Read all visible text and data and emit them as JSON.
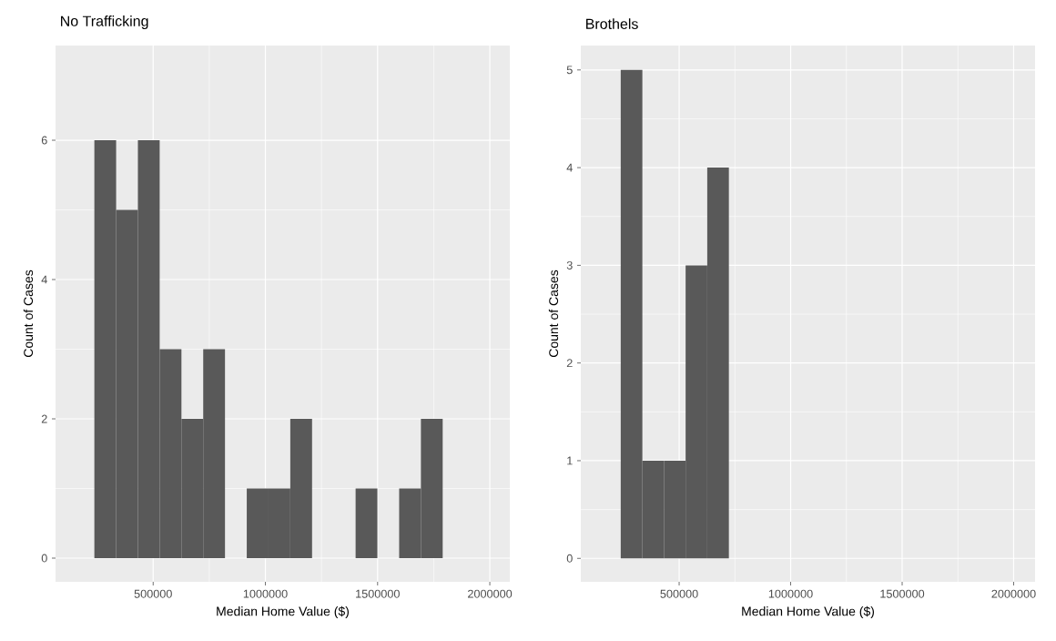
{
  "chart_data": [
    {
      "type": "histogram",
      "title": "No Trafficking",
      "xlabel": "Median Home Value ($)",
      "ylabel": "Count of Cases",
      "color": "#595959",
      "bins": [
        238000,
        335000,
        432000,
        529000,
        626000,
        723000,
        820000,
        917000,
        1014000,
        1111000,
        1208000,
        1305000,
        1402000,
        1499000,
        1596000,
        1693000,
        1790000
      ],
      "values": [
        6,
        5,
        6,
        3,
        2,
        3,
        0,
        1,
        1,
        2,
        0,
        0,
        1,
        0,
        1,
        2
      ],
      "xlim": [
        65000,
        2089000
      ],
      "ylim": [
        -0.34,
        7.36
      ],
      "xticks": [
        500000,
        1000000,
        1500000,
        2000000
      ],
      "yticks": [
        0,
        2,
        4,
        6
      ],
      "grid": true
    },
    {
      "type": "histogram",
      "title": "Brothels",
      "xlabel": "Median Home Value ($)",
      "ylabel": "Count of Cases",
      "color": "#595959",
      "bins": [
        238000,
        335000,
        432000,
        529000,
        626000,
        723000
      ],
      "values": [
        5,
        1,
        1,
        3,
        4
      ],
      "xlim": [
        59000,
        2096000
      ],
      "ylim": [
        -0.24,
        5.25
      ],
      "xticks": [
        500000,
        1000000,
        1500000,
        2000000
      ],
      "yticks": [
        0,
        1,
        2,
        3,
        4,
        5
      ],
      "grid": true
    }
  ]
}
